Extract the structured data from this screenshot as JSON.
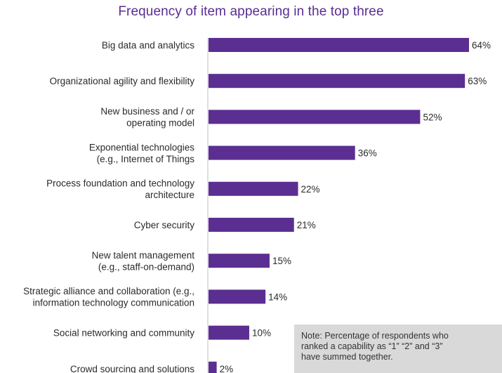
{
  "chart_data": {
    "type": "bar",
    "orientation": "horizontal",
    "title": "Frequency of item appearing in the top three",
    "categories": [
      [
        "Big data and analytics"
      ],
      [
        "Organizational agility and flexibility"
      ],
      [
        "New business and / or",
        "operating model"
      ],
      [
        "Exponential technologies",
        "(e.g., Internet of Things"
      ],
      [
        "Process foundation and technology",
        "architecture"
      ],
      [
        "Cyber security"
      ],
      [
        "New talent management",
        "(e.g., staff-on-demand)"
      ],
      [
        "Strategic alliance and collaboration (e.g.,",
        "information technology communication"
      ],
      [
        "Social networking and community"
      ],
      [
        "Crowd sourcing and solutions"
      ]
    ],
    "values": [
      64,
      63,
      52,
      36,
      22,
      21,
      15,
      14,
      10,
      2
    ],
    "value_labels": [
      "64%",
      "63%",
      "52%",
      "36%",
      "22%",
      "21%",
      "15%",
      "14%",
      "10%",
      "2%"
    ],
    "unit": "%",
    "xlim": [
      0,
      64
    ],
    "grid": false,
    "bar_color": "#5b2e91"
  },
  "note": {
    "text": "Note: Percentage of respondents who\nranked a capability as “1” “2” and “3”\nhave summed together."
  }
}
